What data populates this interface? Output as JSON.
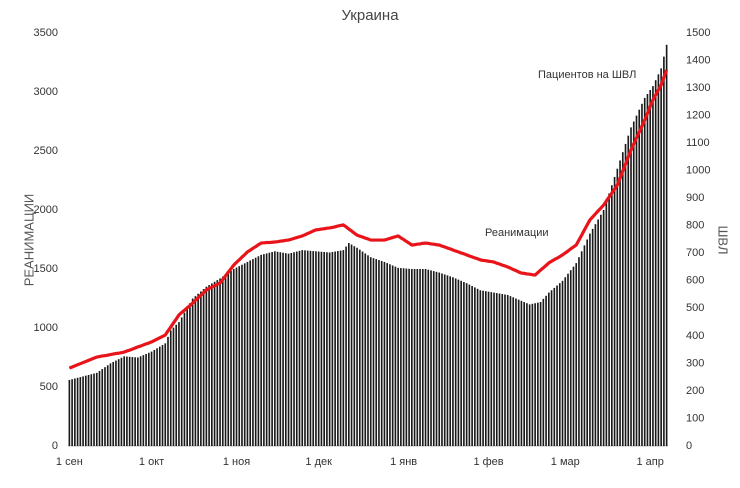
{
  "chart_data": {
    "type": "combo",
    "title": "Украина",
    "y_label": "РЕАНИМАЦИИ",
    "y2_label": "ШВЛ",
    "annotations": [
      "Пациентов на ШВЛ",
      "Реанимации"
    ],
    "categories": [
      "1 сен",
      null,
      null,
      null,
      null,
      null,
      null,
      null,
      null,
      null,
      null,
      null,
      null,
      null,
      null,
      null,
      null,
      null,
      null,
      null,
      null,
      null,
      null,
      null,
      null,
      null,
      null,
      null,
      null,
      null,
      "1 окт",
      null,
      null,
      null,
      null,
      null,
      null,
      null,
      null,
      null,
      null,
      null,
      null,
      null,
      null,
      null,
      null,
      null,
      null,
      null,
      null,
      null,
      null,
      null,
      null,
      null,
      null,
      null,
      null,
      null,
      null,
      "1 ноя",
      null,
      null,
      null,
      null,
      null,
      null,
      null,
      null,
      null,
      null,
      null,
      null,
      null,
      null,
      null,
      null,
      null,
      null,
      null,
      null,
      null,
      null,
      null,
      null,
      null,
      null,
      null,
      null,
      null,
      "1 дек",
      null,
      null,
      null,
      null,
      null,
      null,
      null,
      null,
      null,
      null,
      null,
      null,
      null,
      null,
      null,
      null,
      null,
      null,
      null,
      null,
      null,
      null,
      null,
      null,
      null,
      null,
      null,
      null,
      null,
      null,
      "1 янв",
      null,
      null,
      null,
      null,
      null,
      null,
      null,
      null,
      null,
      null,
      null,
      null,
      null,
      null,
      null,
      null,
      null,
      null,
      null,
      null,
      null,
      null,
      null,
      null,
      null,
      null,
      null,
      null,
      null,
      null,
      "1 фев",
      null,
      null,
      null,
      null,
      null,
      null,
      null,
      null,
      null,
      null,
      null,
      null,
      null,
      null,
      null,
      null,
      null,
      null,
      null,
      null,
      null,
      null,
      null,
      null,
      null,
      null,
      null,
      "1 мар",
      null,
      null,
      null,
      null,
      null,
      null,
      null,
      null,
      null,
      null,
      null,
      null,
      null,
      null,
      null,
      null,
      null,
      null,
      null,
      null,
      null,
      null,
      null,
      null,
      null,
      null,
      null,
      null,
      null,
      null,
      "1 апр",
      null,
      null,
      null,
      null,
      null,
      null
    ],
    "series": [
      {
        "type": "bar",
        "axis": "y",
        "color": "#1a1a1a",
        "values": [
          560,
          566,
          572,
          578,
          584,
          590,
          596,
          602,
          608,
          614,
          620,
          636,
          652,
          668,
          684,
          700,
          712,
          724,
          736,
          748,
          760,
          758,
          756,
          754,
          752,
          750,
          760,
          770,
          780,
          790,
          800,
          814,
          828,
          842,
          856,
          870,
          925,
          980,
          1003,
          1027,
          1050,
          1090,
          1130,
          1170,
          1210,
          1250,
          1270,
          1290,
          1310,
          1330,
          1350,
          1364,
          1378,
          1392,
          1406,
          1420,
          1436,
          1452,
          1468,
          1484,
          1500,
          1512,
          1524,
          1536,
          1548,
          1560,
          1572,
          1584,
          1596,
          1608,
          1620,
          1626,
          1632,
          1638,
          1644,
          1650,
          1646,
          1642,
          1638,
          1634,
          1630,
          1636,
          1642,
          1648,
          1654,
          1660,
          1658,
          1656,
          1654,
          1652,
          1650,
          1648,
          1646,
          1644,
          1642,
          1640,
          1644,
          1648,
          1652,
          1656,
          1660,
          1690,
          1720,
          1707,
          1693,
          1680,
          1664,
          1648,
          1632,
          1616,
          1600,
          1592,
          1584,
          1576,
          1568,
          1560,
          1550,
          1540,
          1530,
          1520,
          1510,
          1508,
          1506,
          1504,
          1502,
          1500,
          1500,
          1500,
          1500,
          1500,
          1500,
          1494,
          1488,
          1482,
          1476,
          1470,
          1462,
          1454,
          1446,
          1438,
          1430,
          1420,
          1410,
          1400,
          1390,
          1380,
          1368,
          1356,
          1344,
          1332,
          1320,
          1316,
          1312,
          1308,
          1304,
          1300,
          1296,
          1292,
          1288,
          1284,
          1280,
          1270,
          1260,
          1250,
          1240,
          1230,
          1220,
          1210,
          1200,
          1205,
          1210,
          1215,
          1220,
          1247,
          1273,
          1300,
          1320,
          1340,
          1360,
          1380,
          1400,
          1430,
          1460,
          1490,
          1520,
          1550,
          1600,
          1650,
          1700,
          1750,
          1800,
          1840,
          1880,
          1920,
          1960,
          2000,
          2070,
          2140,
          2210,
          2280,
          2350,
          2420,
          2490,
          2560,
          2630,
          2700,
          2750,
          2800,
          2850,
          2900,
          2950,
          2983,
          3017,
          3050,
          3100,
          3150,
          3200,
          3300,
          3400
        ]
      },
      {
        "type": "line",
        "axis": "y2",
        "color": "#e8141a",
        "values": [
          283,
          287,
          291,
          295,
          299,
          303,
          307,
          311,
          315,
          319,
          323,
          325,
          327,
          328,
          330,
          332,
          334,
          336,
          337,
          339,
          341,
          345,
          348,
          352,
          356,
          360,
          363,
          367,
          371,
          374,
          378,
          383,
          388,
          393,
          398,
          403,
          418,
          432,
          447,
          461,
          476,
          485,
          493,
          502,
          510,
          519,
          529,
          538,
          548,
          557,
          567,
          572,
          577,
          582,
          587,
          592,
          605,
          618,
          631,
          644,
          657,
          667,
          676,
          686,
          695,
          705,
          711,
          718,
          724,
          731,
          737,
          738,
          739,
          739,
          740,
          741,
          742,
          744,
          745,
          747,
          748,
          751,
          754,
          757,
          760,
          763,
          767,
          772,
          776,
          781,
          785,
          786,
          788,
          789,
          791,
          792,
          794,
          796,
          799,
          801,
          803,
          796,
          788,
          781,
          773,
          766,
          762,
          759,
          755,
          752,
          748,
          748,
          748,
          748,
          748,
          748,
          751,
          754,
          757,
          760,
          763,
          756,
          750,
          743,
          737,
          730,
          731,
          733,
          734,
          736,
          737,
          736,
          734,
          733,
          731,
          730,
          726,
          723,
          719,
          716,
          712,
          708,
          705,
          701,
          698,
          694,
          690,
          687,
          683,
          680,
          676,
          674,
          673,
          671,
          670,
          668,
          664,
          661,
          657,
          654,
          650,
          646,
          641,
          637,
          632,
          628,
          627,
          625,
          624,
          622,
          621,
          630,
          639,
          647,
          656,
          665,
          671,
          677,
          682,
          688,
          694,
          701,
          708,
          716,
          723,
          730,
          748,
          766,
          785,
          803,
          821,
          832,
          843,
          854,
          864,
          875,
          890,
          904,
          919,
          933,
          948,
          973,
          999,
          1024,
          1050,
          1075,
          1097,
          1119,
          1140,
          1162,
          1184,
          1208,
          1233,
          1257,
          1275,
          1293,
          1311,
          1339,
          1366
        ]
      }
    ],
    "ylim": [
      0,
      3500
    ],
    "yticks": [
      0,
      500,
      1000,
      1500,
      2000,
      2500,
      3000,
      3500
    ],
    "y2lim": [
      0,
      1500
    ],
    "y2ticks": [
      0,
      100,
      200,
      300,
      400,
      500,
      600,
      700,
      800,
      900,
      1000,
      1100,
      1200,
      1300,
      1400,
      1500
    ],
    "grid": false
  }
}
